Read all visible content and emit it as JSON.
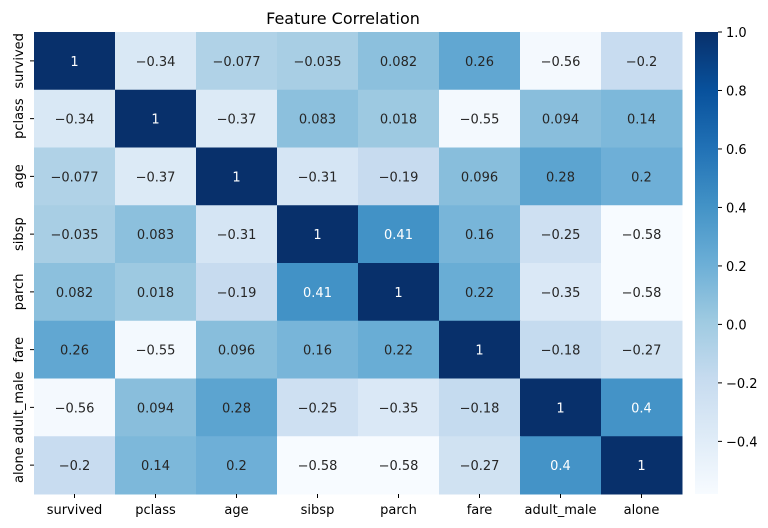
{
  "chart_data": {
    "type": "heatmap",
    "title": "Feature Correlation",
    "xlabel": "",
    "ylabel": "",
    "labels": [
      "survived",
      "pclass",
      "age",
      "sibsp",
      "parch",
      "fare",
      "adult_male",
      "alone"
    ],
    "values": [
      [
        1,
        -0.34,
        -0.077,
        -0.035,
        0.082,
        0.26,
        -0.56,
        -0.2
      ],
      [
        -0.34,
        1,
        -0.37,
        0.083,
        0.018,
        -0.55,
        0.094,
        0.14
      ],
      [
        -0.077,
        -0.37,
        1,
        -0.31,
        -0.19,
        0.096,
        0.28,
        0.2
      ],
      [
        -0.035,
        0.083,
        -0.31,
        1,
        0.41,
        0.16,
        -0.25,
        -0.58
      ],
      [
        0.082,
        0.018,
        -0.19,
        0.41,
        1,
        0.22,
        -0.35,
        -0.58
      ],
      [
        0.26,
        -0.55,
        0.096,
        0.16,
        0.22,
        1,
        -0.18,
        -0.27
      ],
      [
        -0.56,
        0.094,
        0.28,
        -0.25,
        -0.35,
        -0.18,
        1,
        0.4
      ],
      [
        -0.2,
        0.14,
        0.2,
        -0.58,
        -0.58,
        -0.27,
        0.4,
        1
      ]
    ],
    "colorbar": {
      "ticks": [
        "1.0",
        "0.8",
        "0.6",
        "0.4",
        "0.2",
        "0.0",
        "−0.2",
        "−0.4"
      ],
      "range": [
        -0.58,
        1.0
      ]
    },
    "colormap": "Blues",
    "colormap_stops": [
      "#f7fbff",
      "#deebf7",
      "#c6dbef",
      "#9ecae1",
      "#6baed6",
      "#4292c6",
      "#2171b5",
      "#08519c",
      "#08306b"
    ],
    "grid": false
  }
}
